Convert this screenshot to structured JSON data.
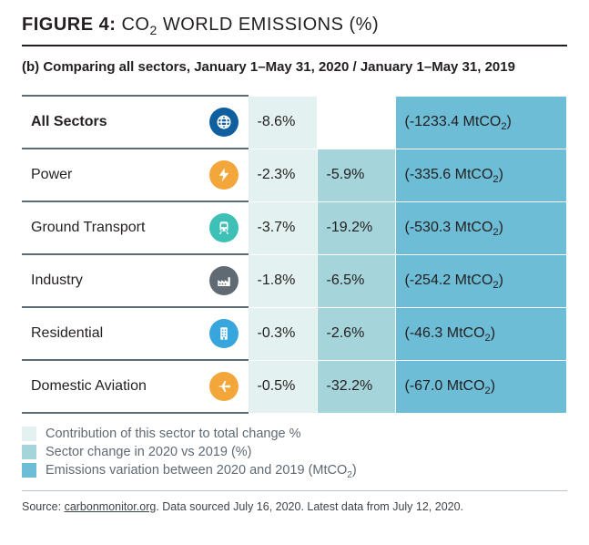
{
  "figure": {
    "label_prefix": "FIGURE 4:",
    "label_title_before_sub": "CO",
    "label_sub": "2",
    "label_title_after_sub": " WORLD EMISSIONS (%)",
    "subtitle": "(b) Comparing all sectors, January 1–May 31, 2020 / January 1–May 31, 2019"
  },
  "colors": {
    "col1_bg": "#e3f1f0",
    "col2_bg": "#a5d4db",
    "col3_bg": "#6dbdd6",
    "header_bg_col3": "#6dbdd6",
    "row_border": "#5f6a72",
    "text": "#231f20",
    "legend_text": "#5f6a72"
  },
  "table": {
    "type": "table",
    "columns": [
      "sector",
      "icon",
      "contribution_pct",
      "sector_change_pct",
      "emissions_variation"
    ],
    "rows": [
      {
        "name": "All Sectors",
        "icon": "globe",
        "icon_bg": "#0f5f9e",
        "icon_stroke": "#ffffff",
        "c1": "-8.6%",
        "c2": "",
        "c3_open": "(-1233.4 MtCO",
        "c3_sub": "2",
        "c3_close": ")",
        "c2_bg": "#ffffff",
        "bold_name": true
      },
      {
        "name": "Power",
        "icon": "bolt",
        "icon_bg": "#f3a73b",
        "icon_stroke": "#ffffff",
        "c1": "-2.3%",
        "c2": "-5.9%",
        "c3_open": "(-335.6 MtCO",
        "c3_sub": "2",
        "c3_close": ")"
      },
      {
        "name": "Ground Transport",
        "icon": "train",
        "icon_bg": "#3dc1b6",
        "icon_stroke": "#ffffff",
        "c1": "-3.7%",
        "c2": "-19.2%",
        "c3_open": "(-530.3 MtCO",
        "c3_sub": "2",
        "c3_close": ")"
      },
      {
        "name": "Industry",
        "icon": "factory",
        "icon_bg": "#5f6a72",
        "icon_stroke": "#ffffff",
        "c1": "-1.8%",
        "c2": "-6.5%",
        "c3_open": "(-254.2 MtCO",
        "c3_sub": "2",
        "c3_close": ")"
      },
      {
        "name": "Residential",
        "icon": "building",
        "icon_bg": "#37a6dd",
        "icon_stroke": "#ffffff",
        "c1": "-0.3%",
        "c2": "-2.6%",
        "c3_open": "(-46.3 MtCO",
        "c3_sub": "2",
        "c3_close": ")"
      },
      {
        "name": "Domestic Aviation",
        "icon": "plane",
        "icon_bg": "#f3a73b",
        "icon_stroke": "#ffffff",
        "c1": "-0.5%",
        "c2": "-32.2%",
        "c3_open": "(-67.0 MtCO",
        "c3_sub": "2",
        "c3_close": ")"
      }
    ]
  },
  "legend": [
    {
      "swatch": "#e3f1f0",
      "label_before": "Contribution of this sector to total change %",
      "label_sub": "",
      "label_after": ""
    },
    {
      "swatch": "#a5d4db",
      "label_before": "Sector change in 2020 vs 2019 (%)",
      "label_sub": "",
      "label_after": ""
    },
    {
      "swatch": "#6dbdd6",
      "label_before": "Emissions variation between 2020 and 2019 (MtCO",
      "label_sub": "2",
      "label_after": ")"
    }
  ],
  "source": {
    "prefix": "Source: ",
    "link_text": "carbonmonitor.org",
    "suffix": ". Data sourced July 16, 2020. Latest data from July 12, 2020."
  }
}
